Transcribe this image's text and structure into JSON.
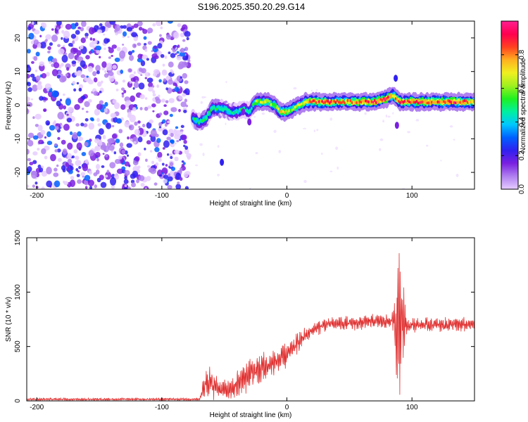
{
  "figure_title": "S196.2025.350.20.29.G14",
  "chart_data": [
    {
      "type": "heatmap",
      "title": "S196.2025.350.20.29.G14",
      "xlabel": "Height of straight line (km)",
      "ylabel": "Frequency (Hz)",
      "xlim": [
        -208,
        150
      ],
      "ylim": [
        -25,
        25
      ],
      "x_ticks": [
        -200,
        -100,
        0,
        100
      ],
      "y_ticks": [
        -20,
        -10,
        0,
        10,
        20
      ],
      "colorbar": {
        "label": "Normalized spectral amplitude",
        "range": [
          0.0,
          1.0
        ],
        "ticks": [
          "0.0",
          "0.2",
          "0.4",
          "0.6",
          "0.8"
        ],
        "colors": [
          "#e6ccff",
          "#b080f0",
          "#7a20e0",
          "#3020f0",
          "#0060ff",
          "#00c8ff",
          "#00f0a0",
          "#20f020",
          "#a0f020",
          "#f0f020",
          "#ffb020",
          "#ff4020",
          "#ff0050",
          "#ff2090"
        ]
      },
      "ridge": {
        "description_x": [
          -75,
          -70,
          -65,
          -60,
          -55,
          -50,
          -45,
          -40,
          -35,
          -30,
          -25,
          -20,
          -15,
          -10,
          -5,
          0,
          5,
          10,
          15,
          20,
          30,
          40,
          50,
          60,
          70,
          80,
          85,
          90,
          100,
          110,
          120,
          130,
          140,
          150
        ],
        "frequency": [
          -4,
          -5,
          -4,
          -1,
          -1,
          -1,
          -2,
          -2,
          -1,
          -2,
          1,
          1,
          1,
          0,
          -2,
          -2,
          -1,
          0,
          1,
          1,
          1,
          1,
          1,
          1,
          1,
          2,
          3,
          1,
          1,
          1,
          1,
          1,
          1,
          1
        ],
        "amplitude": [
          0.45,
          0.5,
          0.55,
          0.5,
          0.55,
          0.5,
          0.5,
          0.45,
          0.5,
          0.45,
          0.6,
          0.65,
          0.7,
          0.6,
          0.75,
          0.7,
          0.6,
          0.65,
          0.7,
          0.85,
          0.9,
          0.85,
          0.8,
          0.85,
          0.9,
          0.95,
          0.8,
          0.85,
          0.9,
          0.9,
          0.85,
          0.9,
          0.85,
          0.8
        ]
      },
      "noise_region_x": [
        -208,
        -78
      ]
    },
    {
      "type": "line",
      "xlabel": "Height of straight line (km)",
      "ylabel": "SNR (10 * v/v)",
      "xlim": [
        -208,
        150
      ],
      "ylim": [
        0,
        1500
      ],
      "x_ticks": [
        -200,
        -100,
        0,
        100
      ],
      "y_ticks": [
        0,
        500,
        1000,
        1500
      ],
      "line_color": "#e03030",
      "envelope": {
        "x": [
          -208,
          -100,
          -70,
          -64,
          -60,
          -55,
          -50,
          -45,
          -40,
          -30,
          -20,
          -10,
          0,
          10,
          20,
          30,
          40,
          50,
          60,
          70,
          80,
          85,
          88,
          90,
          92,
          94,
          96,
          100,
          120,
          150
        ],
        "mean": [
          15,
          15,
          15,
          200,
          150,
          120,
          100,
          90,
          150,
          250,
          300,
          350,
          420,
          550,
          650,
          700,
          710,
          710,
          720,
          730,
          730,
          730,
          700,
          800,
          750,
          720,
          700,
          700,
          700,
          700
        ],
        "amplitude": [
          10,
          10,
          10,
          150,
          120,
          100,
          80,
          80,
          120,
          150,
          180,
          120,
          100,
          80,
          60,
          60,
          60,
          60,
          60,
          60,
          60,
          80,
          500,
          700,
          500,
          200,
          80,
          60,
          60,
          60
        ]
      }
    }
  ]
}
